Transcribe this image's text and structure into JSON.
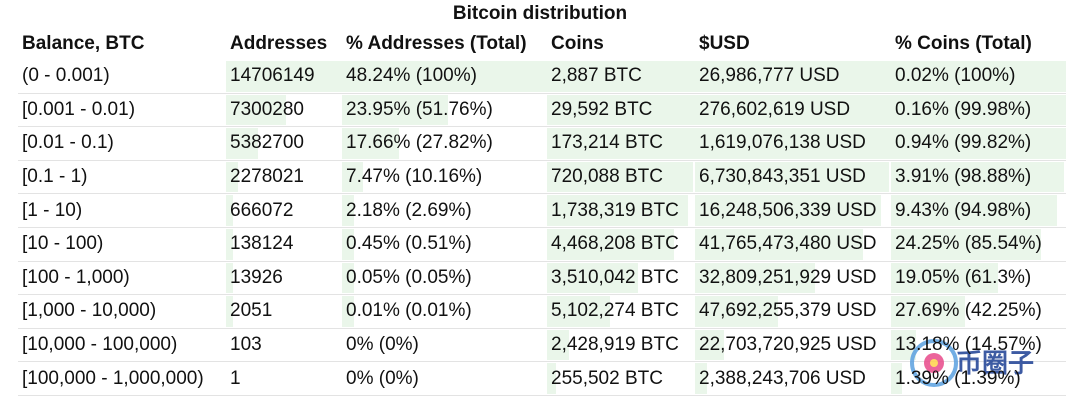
{
  "title": "Bitcoin distribution",
  "columns": [
    "Balance, BTC",
    "Addresses",
    "% Addresses (Total)",
    "Coins",
    "$USD",
    "% Coins (Total)"
  ],
  "rows": [
    {
      "balance": "(0 - 0.001)",
      "addresses": "14706149",
      "pct_addresses": "48.24% (100%)",
      "coins": "2,887 BTC",
      "usd": "26,986,777 USD",
      "pct_coins": "0.02% (100%)",
      "addr_fill": 1.0,
      "coins_fill": 1.0
    },
    {
      "balance": "[0.001 - 0.01)",
      "addresses": "7300280",
      "pct_addresses": "23.95% (51.76%)",
      "coins": "29,592 BTC",
      "usd": "276,602,619 USD",
      "pct_coins": "0.16% (99.98%)",
      "addr_fill": 0.5176,
      "coins_fill": 0.9998
    },
    {
      "balance": "[0.01 - 0.1)",
      "addresses": "5382700",
      "pct_addresses": "17.66% (27.82%)",
      "coins": "173,214 BTC",
      "usd": "1,619,076,138 USD",
      "pct_coins": "0.94% (99.82%)",
      "addr_fill": 0.2782,
      "coins_fill": 0.9982
    },
    {
      "balance": "[0.1 - 1)",
      "addresses": "2278021",
      "pct_addresses": "7.47% (10.16%)",
      "coins": "720,088 BTC",
      "usd": "6,730,843,351 USD",
      "pct_coins": "3.91% (98.88%)",
      "addr_fill": 0.1016,
      "coins_fill": 0.9888
    },
    {
      "balance": "[1 - 10)",
      "addresses": "666072",
      "pct_addresses": "2.18% (2.69%)",
      "coins": "1,738,319 BTC",
      "usd": "16,248,506,339 USD",
      "pct_coins": "9.43% (94.98%)",
      "addr_fill": 0.0269,
      "coins_fill": 0.9498
    },
    {
      "balance": "[10 - 100)",
      "addresses": "138124",
      "pct_addresses": "0.45% (0.51%)",
      "coins": "4,468,208 BTC",
      "usd": "41,765,473,480 USD",
      "pct_coins": "24.25% (85.54%)",
      "addr_fill": 0.0051,
      "coins_fill": 0.8554
    },
    {
      "balance": "[100 - 1,000)",
      "addresses": "13926",
      "pct_addresses": "0.05% (0.05%)",
      "coins": "3,510,042 BTC",
      "usd": "32,809,251,929 USD",
      "pct_coins": "19.05% (61.3%)",
      "addr_fill": 0.0005,
      "coins_fill": 0.613
    },
    {
      "balance": "[1,000 - 10,000)",
      "addresses": "2051",
      "pct_addresses": "0.01% (0.01%)",
      "coins": "5,102,274 BTC",
      "usd": "47,692,255,379 USD",
      "pct_coins": "27.69% (42.25%)",
      "addr_fill": 0.0001,
      "coins_fill": 0.4225
    },
    {
      "balance": "[10,000 - 100,000)",
      "addresses": "103",
      "pct_addresses": "0% (0%)",
      "coins": "2,428,919 BTC",
      "usd": "22,703,720,925 USD",
      "pct_coins": "13.18% (14.57%)",
      "addr_fill": 0.0,
      "coins_fill": 0.1457
    },
    {
      "balance": "[100,000 - 1,000,000)",
      "addresses": "1",
      "pct_addresses": "0% (0%)",
      "coins": "255,502 BTC",
      "usd": "2,388,243,706 USD",
      "pct_coins": "1.39% (1.39%)",
      "addr_fill": 0.0,
      "coins_fill": 0.0139
    }
  ],
  "watermark": {
    "text": "币圈子",
    "url": "99hufu.com"
  },
  "colors": {
    "bar": "#eaf6ea",
    "row_border": "#e3e3e3"
  }
}
